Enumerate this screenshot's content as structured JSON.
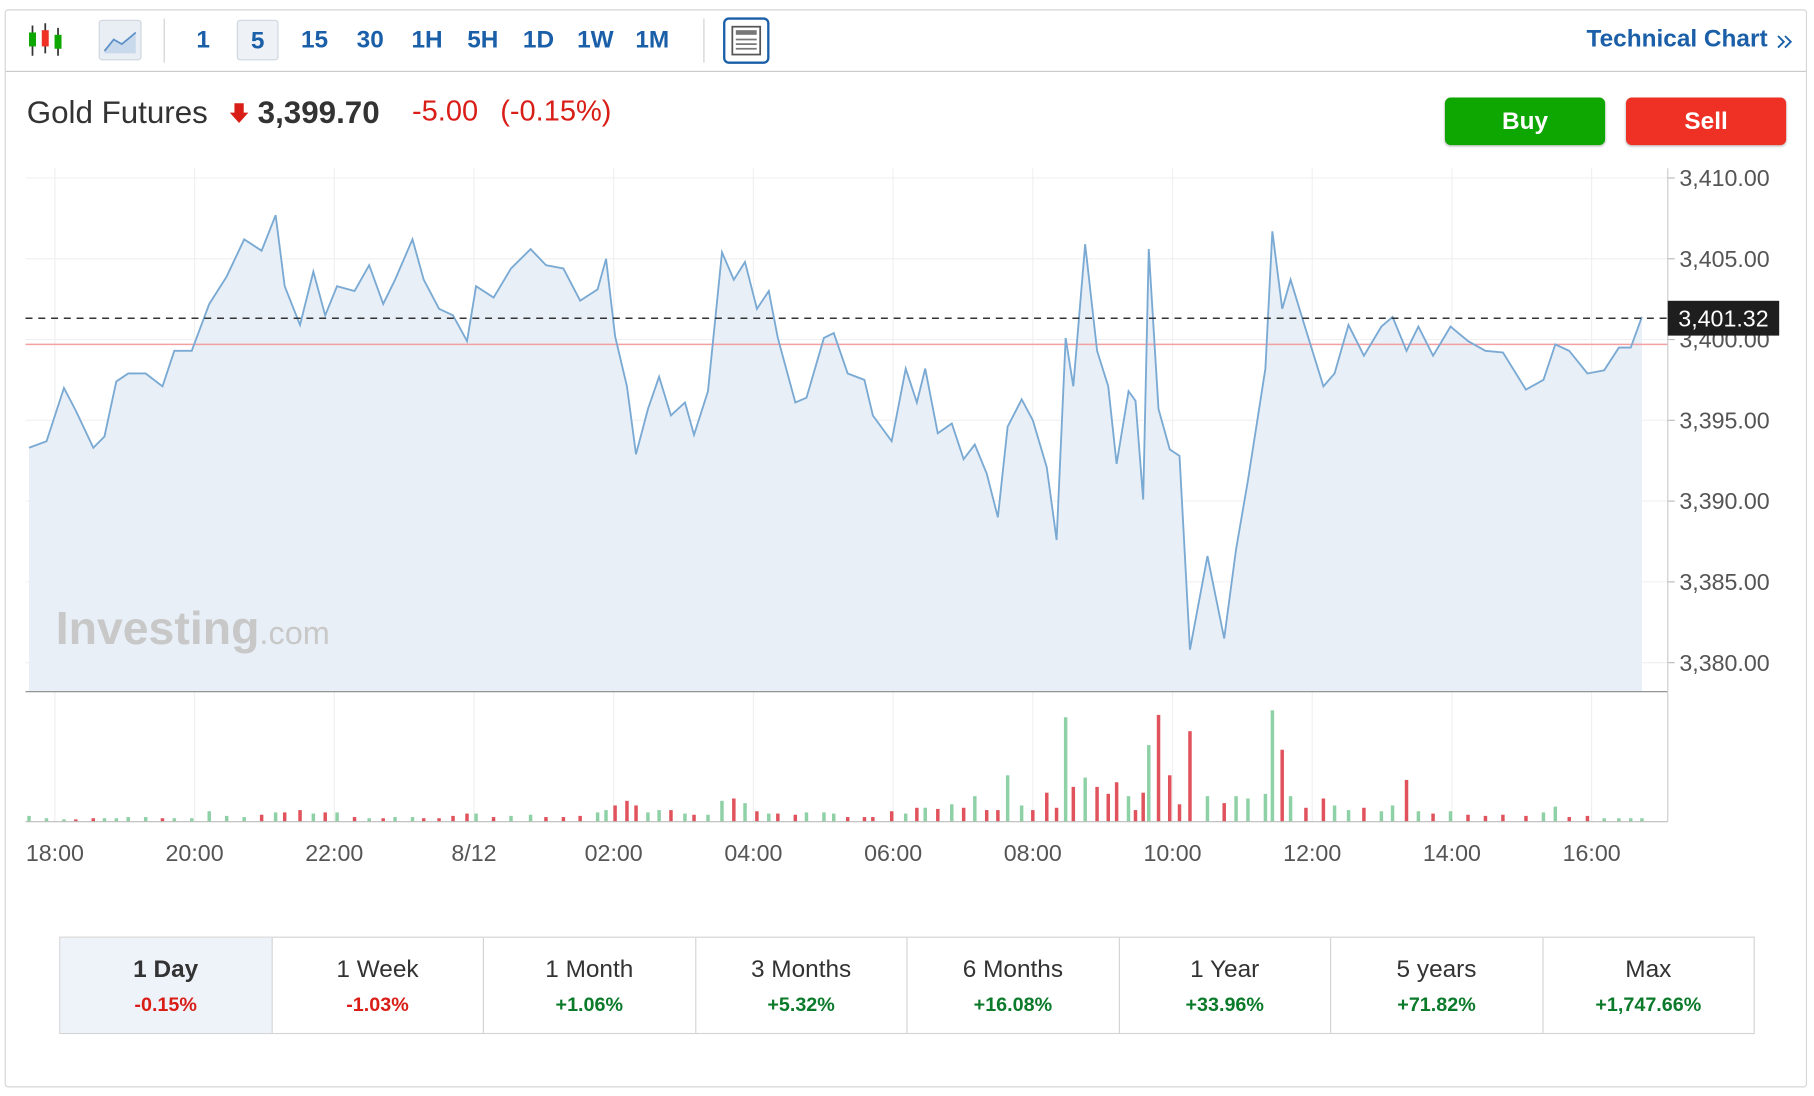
{
  "toolbar": {
    "intervals": [
      "1",
      "5",
      "15",
      "30",
      "1H",
      "5H",
      "1D",
      "1W",
      "1M"
    ],
    "active_interval": "5",
    "link": "Technical Chart"
  },
  "quote": {
    "name": "Gold Futures",
    "price": "3,399.70",
    "change": "-5.00",
    "change_pct": "(-0.15%)"
  },
  "actions": {
    "buy": "Buy",
    "sell": "Sell"
  },
  "watermark": {
    "brand": "Investing",
    "suffix": ".com"
  },
  "chart_data": {
    "type": "line",
    "x": [
      17.63,
      17.88,
      18.13,
      18.3,
      18.55,
      18.71,
      18.88,
      19.05,
      19.3,
      19.54,
      19.71,
      19.96,
      20.21,
      20.46,
      20.71,
      20.96,
      21.16,
      21.29,
      21.51,
      21.7,
      21.87,
      22.04,
      22.29,
      22.5,
      22.7,
      22.87,
      23.12,
      23.28,
      23.5,
      23.7,
      23.9,
      24.03,
      24.28,
      24.53,
      24.81,
      25.03,
      25.28,
      25.52,
      25.77,
      25.89,
      26.02,
      26.19,
      26.32,
      26.49,
      26.65,
      26.82,
      27.02,
      27.15,
      27.35,
      27.55,
      27.72,
      27.88,
      28.05,
      28.22,
      28.35,
      28.6,
      28.76,
      29.01,
      29.15,
      29.35,
      29.59,
      29.71,
      29.98,
      30.18,
      30.34,
      30.46,
      30.64,
      30.84,
      31.01,
      31.17,
      31.34,
      31.5,
      31.64,
      31.84,
      32.0,
      32.2,
      32.34,
      32.47,
      32.58,
      32.75,
      32.92,
      33.08,
      33.2,
      33.37,
      33.47,
      33.58,
      33.66,
      33.8,
      33.96,
      34.1,
      34.25,
      34.5,
      34.74,
      34.91,
      35.08,
      35.33,
      35.43,
      35.57,
      35.69,
      35.91,
      36.16,
      36.32,
      36.52,
      36.74,
      36.99,
      37.15,
      37.35,
      37.52,
      37.73,
      37.98,
      38.23,
      38.48,
      38.73,
      39.06,
      39.31,
      39.48,
      39.68,
      39.94,
      40.18,
      40.39,
      40.56,
      40.72
    ],
    "values": [
      3393.3,
      3393.7,
      3397.0,
      3395.6,
      3393.3,
      3394.0,
      3397.4,
      3397.9,
      3397.9,
      3397.1,
      3399.3,
      3399.3,
      3402.2,
      3403.9,
      3406.2,
      3405.5,
      3407.7,
      3403.3,
      3400.9,
      3404.2,
      3401.5,
      3403.3,
      3403.0,
      3404.6,
      3402.2,
      3403.7,
      3406.2,
      3403.7,
      3401.9,
      3401.5,
      3399.9,
      3403.3,
      3402.6,
      3404.4,
      3405.6,
      3404.6,
      3404.4,
      3402.4,
      3403.1,
      3405.0,
      3400.2,
      3397.1,
      3392.9,
      3395.7,
      3397.7,
      3395.3,
      3396.1,
      3394.1,
      3396.8,
      3405.4,
      3403.7,
      3404.8,
      3401.9,
      3403.0,
      3400.1,
      3396.1,
      3396.4,
      3400.1,
      3400.4,
      3397.9,
      3397.5,
      3395.3,
      3393.7,
      3398.2,
      3396.1,
      3398.2,
      3394.2,
      3394.8,
      3392.6,
      3393.5,
      3391.7,
      3389.0,
      3394.6,
      3396.3,
      3395.0,
      3392.1,
      3387.6,
      3400.1,
      3397.1,
      3405.9,
      3399.3,
      3397.1,
      3392.3,
      3396.8,
      3396.2,
      3390.1,
      3405.6,
      3395.7,
      3393.2,
      3392.8,
      3380.8,
      3386.6,
      3381.5,
      3387.0,
      3391.3,
      3398.2,
      3406.7,
      3401.9,
      3403.7,
      3400.6,
      3397.1,
      3397.9,
      3400.9,
      3399.0,
      3400.8,
      3401.4,
      3399.3,
      3400.8,
      3399.0,
      3400.8,
      3399.9,
      3399.3,
      3399.2,
      3396.9,
      3397.5,
      3399.7,
      3399.3,
      3397.9,
      3398.1,
      3399.5,
      3399.5,
      3401.4
    ],
    "color": "#7aaad3",
    "fill": "#e8eff7",
    "volume": {
      "values": [
        5,
        3,
        2,
        2,
        3,
        3,
        3,
        4,
        4,
        3,
        3,
        3,
        9,
        5,
        4,
        6,
        8,
        8,
        10,
        7,
        8,
        8,
        4,
        3,
        3,
        4,
        4,
        3,
        3,
        5,
        7,
        7,
        4,
        5,
        6,
        4,
        4,
        5,
        8,
        10,
        14,
        18,
        14,
        8,
        10,
        10,
        7,
        6,
        6,
        18,
        20,
        16,
        9,
        7,
        7,
        6,
        8,
        8,
        7,
        4,
        4,
        4,
        9,
        7,
        12,
        12,
        11,
        15,
        12,
        22,
        10,
        10,
        40,
        14,
        10,
        25,
        12,
        90,
        30,
        38,
        30,
        24,
        34,
        22,
        10,
        25,
        66,
        92,
        40,
        15,
        78,
        22,
        16,
        22,
        20,
        24,
        96,
        62,
        22,
        12,
        20,
        14,
        10,
        12,
        9,
        14,
        36,
        9,
        7,
        9,
        6,
        5,
        6,
        5,
        8,
        13,
        4,
        5,
        3,
        3,
        3,
        3
      ],
      "up_color": "#8fd1a6",
      "down_color": "#e0525c"
    },
    "xlim": [
      17.58,
      41.09
    ],
    "xticks": [
      {
        "value": 18,
        "label": "18:00"
      },
      {
        "value": 20,
        "label": "20:00"
      },
      {
        "value": 22,
        "label": "22:00"
      },
      {
        "value": 24,
        "label": "8/12"
      },
      {
        "value": 26,
        "label": "02:00"
      },
      {
        "value": 28,
        "label": "04:00"
      },
      {
        "value": 30,
        "label": "06:00"
      },
      {
        "value": 32,
        "label": "08:00"
      },
      {
        "value": 34,
        "label": "10:00"
      },
      {
        "value": 36,
        "label": "12:00"
      },
      {
        "value": 38,
        "label": "14:00"
      },
      {
        "value": 40,
        "label": "16:00"
      }
    ],
    "ylim": [
      3378.2,
      3410.6
    ],
    "yticks": [
      {
        "value": 3380,
        "label": "3,380.00"
      },
      {
        "value": 3385,
        "label": "3,385.00"
      },
      {
        "value": 3390,
        "label": "3,390.00"
      },
      {
        "value": 3395,
        "label": "3,395.00"
      },
      {
        "value": 3400,
        "label": "3,400.00"
      },
      {
        "value": 3405,
        "label": "3,405.00"
      },
      {
        "value": 3410,
        "label": "3,410.00"
      }
    ],
    "current_price": {
      "value": 3401.32,
      "label": "3,401.32"
    },
    "reference_line": 3399.7,
    "grid": true
  },
  "periods": [
    {
      "label": "1 Day",
      "change": "-0.15%"
    },
    {
      "label": "1 Week",
      "change": "-1.03%"
    },
    {
      "label": "1 Month",
      "change": "+1.06%"
    },
    {
      "label": "3 Months",
      "change": "+5.32%"
    },
    {
      "label": "6 Months",
      "change": "+16.08%"
    },
    {
      "label": "1 Year",
      "change": "+33.96%"
    },
    {
      "label": "5 years",
      "change": "+71.82%"
    },
    {
      "label": "Max",
      "change": "+1,747.66%"
    }
  ],
  "active_period": "1 Day"
}
